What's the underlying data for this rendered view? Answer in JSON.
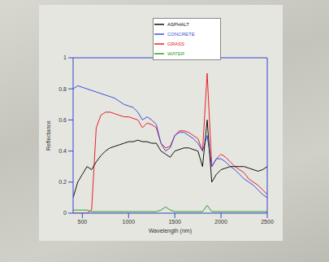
{
  "chart_data": {
    "type": "line",
    "x_label": "Wavelength (nm)",
    "y_label": "Reflectance",
    "x": [
      400,
      450,
      500,
      550,
      600,
      650,
      700,
      750,
      800,
      850,
      900,
      950,
      1000,
      1050,
      1100,
      1150,
      1200,
      1250,
      1300,
      1350,
      1400,
      1450,
      1500,
      1550,
      1600,
      1650,
      1700,
      1750,
      1800,
      1850,
      1900,
      1950,
      2000,
      2050,
      2100,
      2150,
      2200,
      2250,
      2300,
      2350,
      2400,
      2450,
      2500
    ],
    "series": [
      {
        "name": "GRASS",
        "color": "#e8202a",
        "values": [
          0,
          0,
          0,
          0,
          0.02,
          0.55,
          0.63,
          0.65,
          0.65,
          0.64,
          0.63,
          0.62,
          0.62,
          0.61,
          0.6,
          0.55,
          0.58,
          0.57,
          0.55,
          0.45,
          0.42,
          0.43,
          0.5,
          0.53,
          0.53,
          0.52,
          0.5,
          0.48,
          0.4,
          0.9,
          0.3,
          0.35,
          0.38,
          0.36,
          0.33,
          0.3,
          0.28,
          0.26,
          0.22,
          0.2,
          0.18,
          0.15,
          0.12
        ]
      },
      {
        "name": "CONCRETE",
        "color": "#3a4fd8",
        "values": [
          0.8,
          0.82,
          0.81,
          0.8,
          0.79,
          0.78,
          0.77,
          0.76,
          0.75,
          0.74,
          0.72,
          0.7,
          0.69,
          0.68,
          0.65,
          0.6,
          0.62,
          0.6,
          0.57,
          0.45,
          0.4,
          0.42,
          0.5,
          0.52,
          0.52,
          0.5,
          0.48,
          0.45,
          0.4,
          0.5,
          0.3,
          0.35,
          0.35,
          0.33,
          0.3,
          0.28,
          0.25,
          0.22,
          0.2,
          0.18,
          0.15,
          0.12,
          0.1
        ]
      },
      {
        "name": "WATER",
        "color": "#2aa02a",
        "values": [
          0.02,
          0.02,
          0.02,
          0.02,
          0.01,
          0.01,
          0.01,
          0.01,
          0.01,
          0.01,
          0.01,
          0.01,
          0.01,
          0.01,
          0.01,
          0.01,
          0.01,
          0.01,
          0.01,
          0.02,
          0.04,
          0.02,
          0.01,
          0.01,
          0.01,
          0.01,
          0.01,
          0.01,
          0.01,
          0.05,
          0.01,
          0.01,
          0.01,
          0.01,
          0.01,
          0.01,
          0.01,
          0.01,
          0.01,
          0.01,
          0.01,
          0.01,
          0.01
        ]
      },
      {
        "name": "ASPHALT",
        "color": "#111111",
        "values": [
          0.1,
          0.2,
          0.25,
          0.3,
          0.28,
          0.33,
          0.37,
          0.4,
          0.42,
          0.43,
          0.44,
          0.45,
          0.46,
          0.46,
          0.47,
          0.46,
          0.46,
          0.45,
          0.45,
          0.4,
          0.38,
          0.36,
          0.4,
          0.41,
          0.42,
          0.42,
          0.41,
          0.4,
          0.3,
          0.6,
          0.2,
          0.25,
          0.28,
          0.29,
          0.3,
          0.3,
          0.3,
          0.3,
          0.29,
          0.28,
          0.27,
          0.28,
          0.3
        ]
      }
    ],
    "xlim": [
      400,
      2500
    ],
    "xticks": [
      500,
      1000,
      1500,
      2000,
      2500
    ],
    "ylim": [
      0,
      1
    ],
    "yticks": [
      0,
      0.2,
      0.4,
      0.6,
      0.8,
      1
    ],
    "legend": "top",
    "grid": false
  }
}
